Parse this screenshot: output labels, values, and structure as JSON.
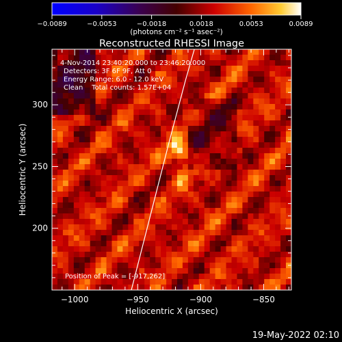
{
  "colorbar": {
    "ticks": [
      "-0.0089",
      "-0.0053",
      "-0.0018",
      "0.0018",
      "0.0053",
      "0.0089"
    ],
    "unit_label": "(photons cm⁻² s⁻¹ asec⁻²)"
  },
  "footer": {
    "timestamp": "19-May-2022 02:10"
  },
  "chart_data": {
    "type": "heatmap",
    "title": "Reconstructed RHESSI Image",
    "xlabel": "Heliocentric X (arcsec)",
    "ylabel": "Heliocentric Y (arcsec)",
    "xlim": [
      -1018,
      -828
    ],
    "ylim": [
      150,
      345
    ],
    "x_ticks": [
      "-1000",
      "-950",
      "-900",
      "-850"
    ],
    "y_ticks": [
      "200",
      "250",
      "300"
    ],
    "x_tick_values": [
      -1000,
      -950,
      -900,
      -850
    ],
    "y_tick_values": [
      200,
      250,
      300
    ],
    "color_range": [
      -0.0089,
      0.0089
    ],
    "annotations": {
      "time_range": "4-Nov-2014 23:40:20.000 to 23:46:20.000",
      "detectors": "Detectors: 3F 6F 9F, Att 0",
      "energy": "Energy Range: 6.0 - 12.0 keV",
      "clean": "Clean    Total counts: 1.57E+04",
      "peak": "Position of Peak = [-917,262]"
    },
    "peak": {
      "x": -917,
      "y": 262
    },
    "limb_line": [
      [
        -955,
        150
      ],
      [
        -940,
        210
      ],
      [
        -925,
        270
      ],
      [
        -912,
        320
      ],
      [
        -905,
        345
      ]
    ]
  }
}
